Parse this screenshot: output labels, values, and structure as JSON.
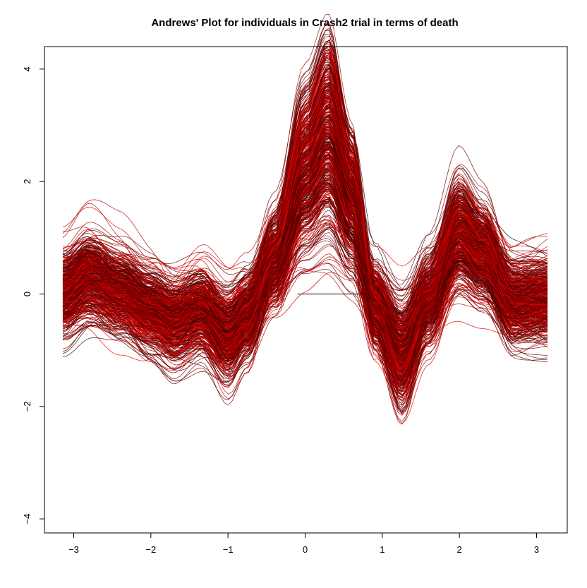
{
  "chart_data": {
    "type": "line",
    "title": "Andrews' Plot for individuals in Crash2 trial in terms of death",
    "xlabel": "",
    "ylabel": "",
    "xlim": [
      -3.1416,
      3.1416
    ],
    "ylim": [
      -4.25,
      4.4
    ],
    "x_ticks": [
      -3,
      -2,
      -1,
      0,
      1,
      2,
      3
    ],
    "x_tick_labels": [
      "−3",
      "−2",
      "−1",
      "0",
      "1",
      "2",
      "3"
    ],
    "y_ticks": [
      -4,
      -2,
      0,
      2,
      4
    ],
    "y_tick_labels": [
      "−4",
      "−2",
      "0",
      "2",
      "4"
    ],
    "grid": false,
    "legend": "none",
    "series_count": 520,
    "series_colors": [
      "#000000",
      "#e00000"
    ],
    "profile": {
      "x": [
        -3.1416,
        -2.8,
        -2.4,
        -2.0,
        -1.7,
        -1.35,
        -1.0,
        -0.75,
        -0.4,
        0.0,
        0.3,
        0.6,
        0.9,
        1.25,
        1.6,
        2.0,
        2.3,
        2.7,
        3.1416
      ],
      "y": [
        0.0,
        0.3,
        0.05,
        -0.25,
        -0.45,
        -0.25,
        -0.7,
        -0.35,
        0.6,
        2.2,
        2.85,
        1.7,
        -0.2,
        -1.05,
        -0.1,
        1.05,
        0.7,
        -0.15,
        -0.1
      ]
    },
    "reference_line": {
      "x": [
        -0.1,
        0.8
      ],
      "y": [
        0.0,
        0.0
      ]
    }
  }
}
